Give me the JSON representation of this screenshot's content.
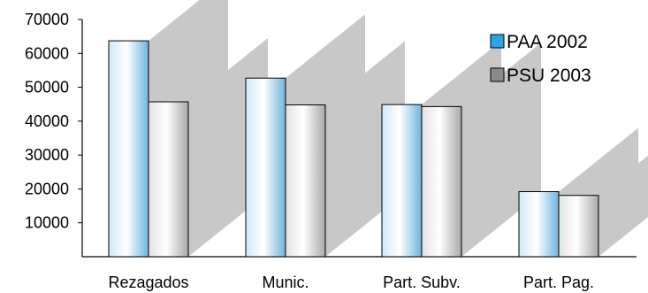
{
  "chart_data": {
    "type": "bar",
    "categories": [
      "Rezagados",
      "Munic.",
      "Part. Subv.",
      "Part. Pag."
    ],
    "series": [
      {
        "name": "PAA 2002",
        "values": [
          63700,
          52700,
          44900,
          19200
        ],
        "color": "#2aa6e6"
      },
      {
        "name": "PSU 2003",
        "values": [
          45700,
          44800,
          44300,
          18100
        ],
        "color": "#8a8a8a"
      }
    ],
    "yticks": [
      "10000",
      "20000",
      "30000",
      "40000",
      "50000",
      "60000",
      "70000"
    ],
    "ylim": [
      0,
      70000
    ],
    "shadow_color": "#c8c8c8",
    "grid": false,
    "legend_position": "top-right",
    "title": "",
    "xlabel": "",
    "ylabel": ""
  }
}
